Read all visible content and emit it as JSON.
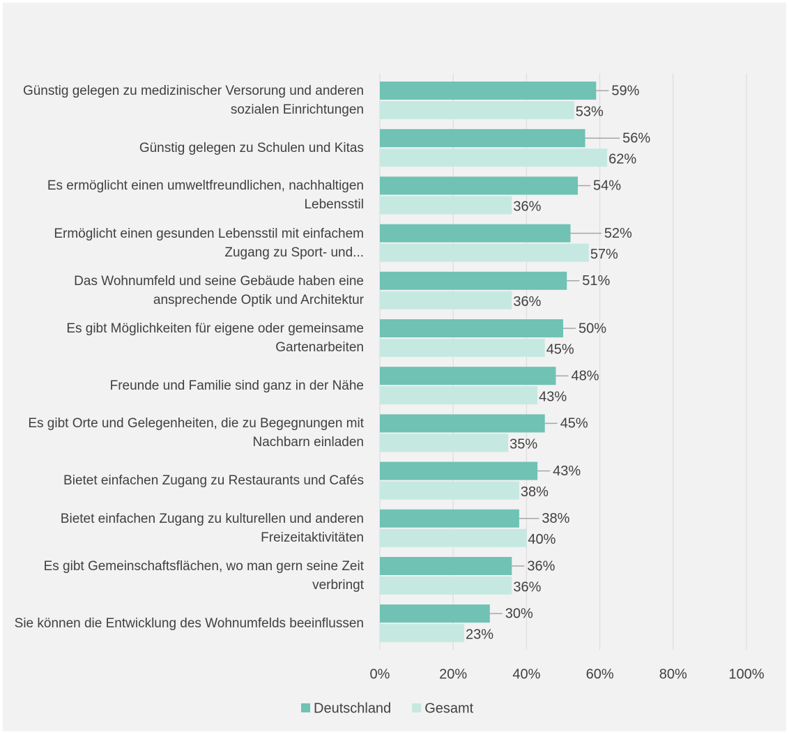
{
  "chart_data": {
    "type": "hbar",
    "categories": [
      "Günstig gelegen zu medizinischer Versorung und anderen sozialen Einrichtungen",
      "Günstig gelegen zu Schulen und Kitas",
      "Es ermöglicht einen umweltfreundlichen, nachhaltigen Lebensstil",
      "Ermöglicht einen gesunden Lebensstil mit einfachem Zugang zu Sport- und...",
      "Das Wohnumfeld und seine Gebäude haben eine ansprechende Optik und Architektur",
      "Es gibt Möglichkeiten für eigene oder gemeinsame Gartenarbeiten",
      "Freunde und Familie sind ganz in der Nähe",
      "Es gibt Orte und Gelegenheiten, die zu Begegnungen mit Nachbarn einladen",
      "Bietet einfachen Zugang zu Restaurants und Cafés",
      "Bietet einfachen Zugang zu kulturellen und anderen Freizeitaktivitäten",
      "Es gibt Gemeinschaftsflächen, wo man gern seine Zeit verbringt",
      "Sie können die Entwicklung des Wohnumfelds beeinflussen"
    ],
    "series": [
      {
        "name": "Deutschland",
        "color": "#6fc2b4",
        "values": [
          59,
          56,
          54,
          52,
          51,
          50,
          48,
          45,
          43,
          38,
          36,
          30
        ],
        "value_labels": [
          "59%",
          "56%",
          "54%",
          "52%",
          "51%",
          "50%",
          "48%",
          "45%",
          "43%",
          "38%",
          "36%",
          "30%"
        ]
      },
      {
        "name": "Gesamt",
        "color": "#c5e9e1",
        "values": [
          53,
          62,
          36,
          57,
          36,
          45,
          43,
          35,
          38,
          40,
          36,
          23
        ],
        "value_labels": [
          "53%",
          "62%",
          "36%",
          "57%",
          "36%",
          "45%",
          "43%",
          "35%",
          "38%",
          "40%",
          "36%",
          "23%"
        ]
      }
    ],
    "xlim": [
      0,
      100
    ],
    "xticks": [
      {
        "value": 0,
        "label": "0%"
      },
      {
        "value": 20,
        "label": "20%"
      },
      {
        "value": 40,
        "label": "40%"
      },
      {
        "value": 60,
        "label": "60%"
      },
      {
        "value": 80,
        "label": "80%"
      },
      {
        "value": 100,
        "label": "100%"
      }
    ],
    "grid": true,
    "legend": "bottom"
  }
}
